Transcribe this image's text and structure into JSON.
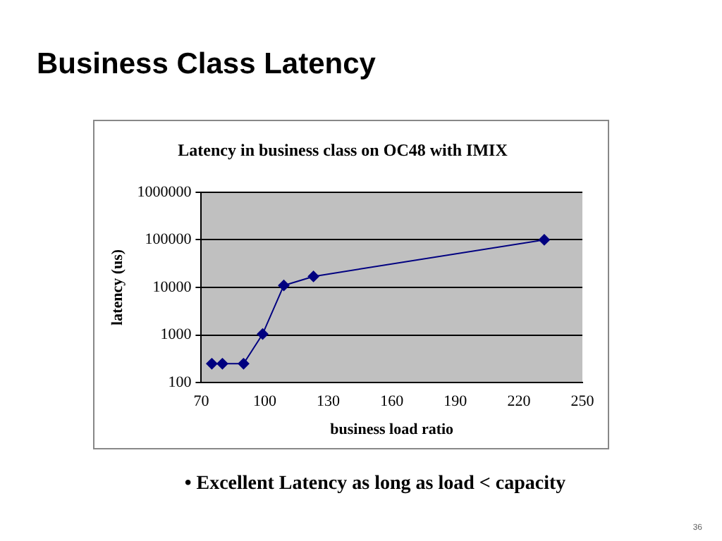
{
  "chart_data": {
    "type": "line",
    "title": "Business Class Latency",
    "subtitle": "Latency in business class on OC48 with IMIX",
    "xlabel": "business load ratio",
    "ylabel": "latency (us)",
    "x": [
      75,
      80,
      90,
      99,
      109,
      123,
      232
    ],
    "series": [
      {
        "color": "#000080",
        "values": [
          250,
          250,
          250,
          1050,
          11000,
          17000,
          100000
        ]
      }
    ],
    "xlim": [
      70,
      250
    ],
    "xticks": [
      70,
      100,
      130,
      160,
      190,
      220,
      250
    ],
    "ylim": [
      100,
      1000000
    ],
    "yticks": [
      100,
      1000,
      10000,
      100000,
      1000000
    ],
    "log": "y",
    "grid": "y",
    "legend": false,
    "marker": "diamond",
    "line_style": "solid",
    "annotations": [
      "• Excellent Latency as long as load < capacity",
      "36"
    ]
  }
}
